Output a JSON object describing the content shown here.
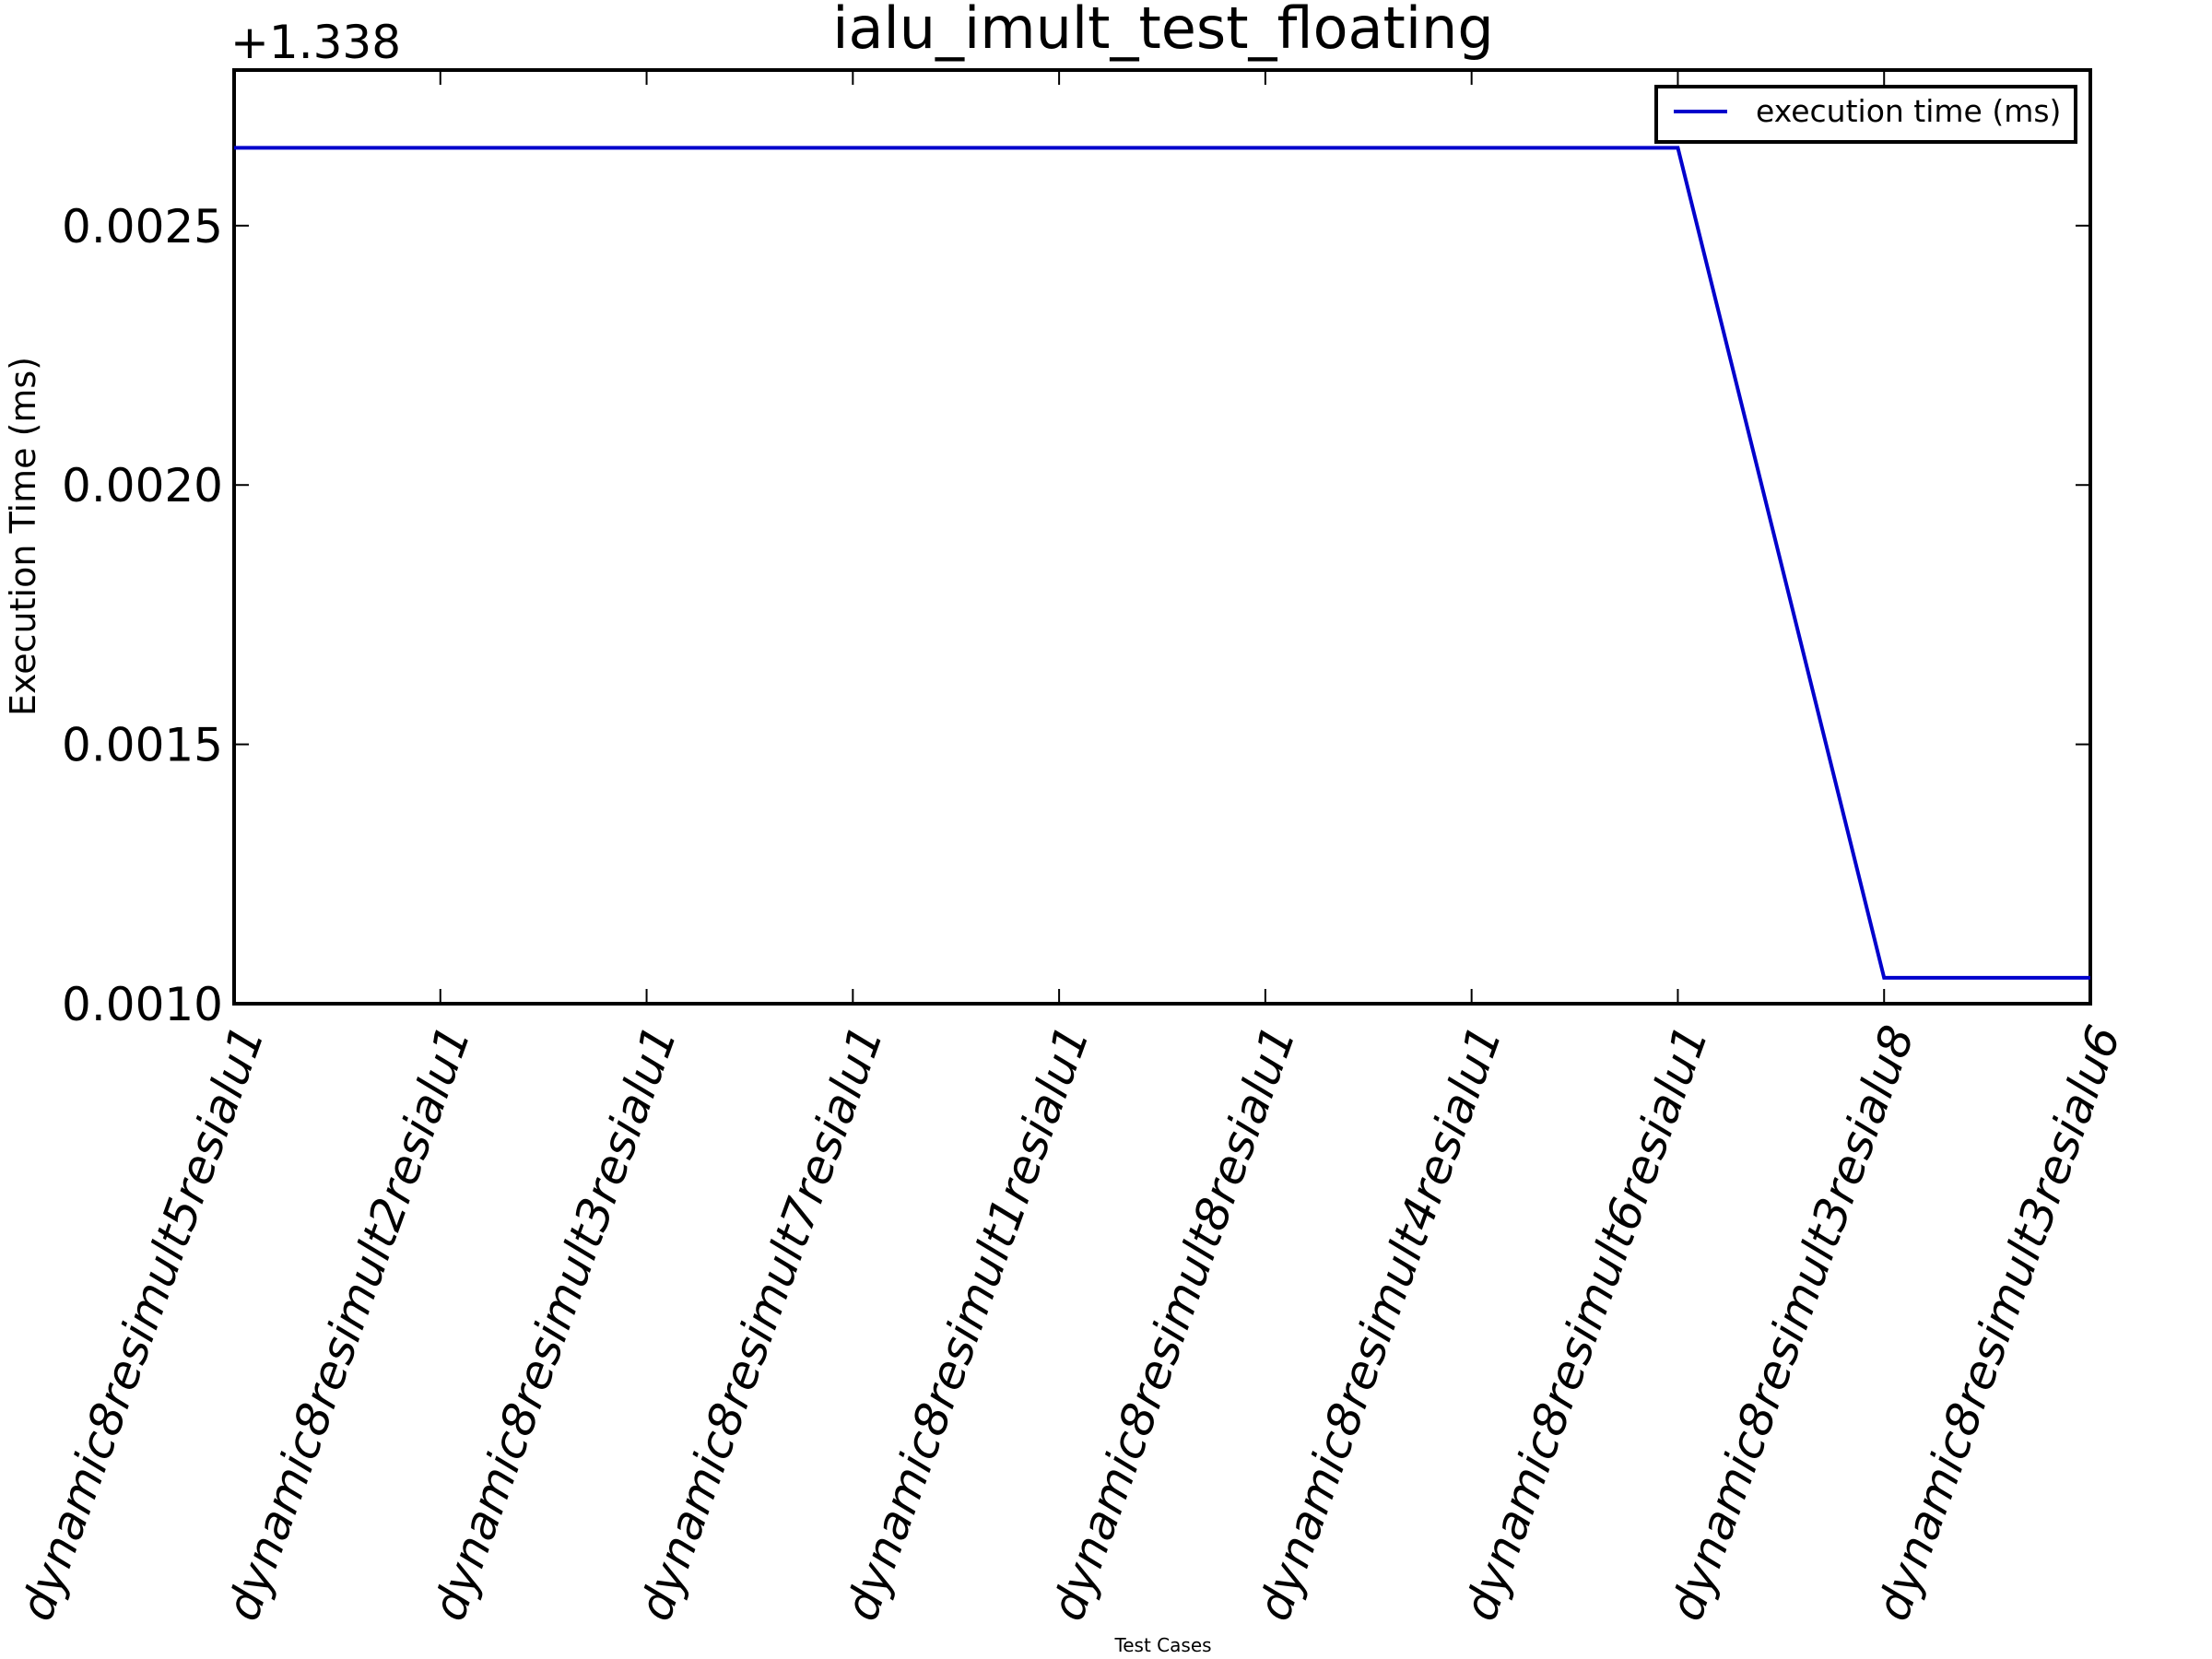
{
  "chart_data": {
    "type": "line",
    "title": "ialu_imult_test_floating",
    "xlabel": "Test Cases",
    "ylabel": "Execution Time (ms)",
    "y_offset_label": "+1.338",
    "y_offset": 1.338,
    "categories": [
      "dynamic8resimult5resialu1",
      "dynamic8resimult2resialu1",
      "dynamic8resimult3resialu1",
      "dynamic8resimult7resialu1",
      "dynamic8resimult1resialu1",
      "dynamic8resimult8resialu1",
      "dynamic8resimult4resialu1",
      "dynamic8resimult6resialu1",
      "dynamic8resimult3resialu8",
      "dynamic8resimult3resialu6"
    ],
    "series": [
      {
        "name": "execution time (ms)",
        "color": "#0000cc",
        "values": [
          1.34065,
          1.34065,
          1.34065,
          1.34065,
          1.34065,
          1.34065,
          1.34065,
          1.34065,
          1.33905,
          1.33905
        ]
      }
    ],
    "ylim": [
      1.339,
      1.3408
    ],
    "yticks": [
      0.001,
      0.0015,
      0.002,
      0.0025
    ],
    "ytick_labels": [
      "0.0010",
      "0.0015",
      "0.0020",
      "0.0025"
    ],
    "grid": false,
    "legend_position": "top-right"
  }
}
